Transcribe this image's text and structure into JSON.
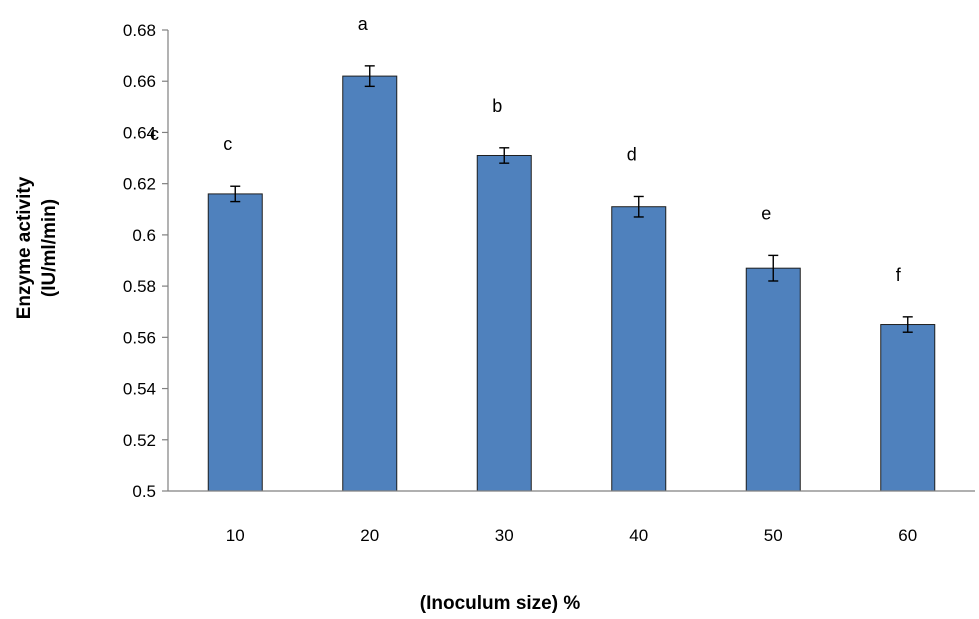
{
  "chart_data": {
    "type": "bar",
    "title": "",
    "xlabel": "(Inoculum size)  %",
    "ylabel_line1": "Enzyme activity",
    "ylabel_line2": "(IU/ml/min)",
    "categories": [
      "10",
      "20",
      "30",
      "40",
      "50",
      "60"
    ],
    "values": [
      0.616,
      0.662,
      0.631,
      0.611,
      0.587,
      0.565
    ],
    "errors": [
      0.003,
      0.004,
      0.003,
      0.004,
      0.005,
      0.003
    ],
    "significance_letters": [
      "c",
      "a",
      "b",
      "d",
      "e",
      "f"
    ],
    "stray_letter": "c",
    "ylim": [
      0.5,
      0.68
    ],
    "yticks": [
      "0.5",
      "0.52",
      "0.54",
      "0.56",
      "0.58",
      "0.6",
      "0.62",
      "0.64",
      "0.66",
      "0.68"
    ],
    "grid": false,
    "legend": "none",
    "bar_color": "#4f81bd",
    "bar_edge_color": "#1f1f1f"
  }
}
